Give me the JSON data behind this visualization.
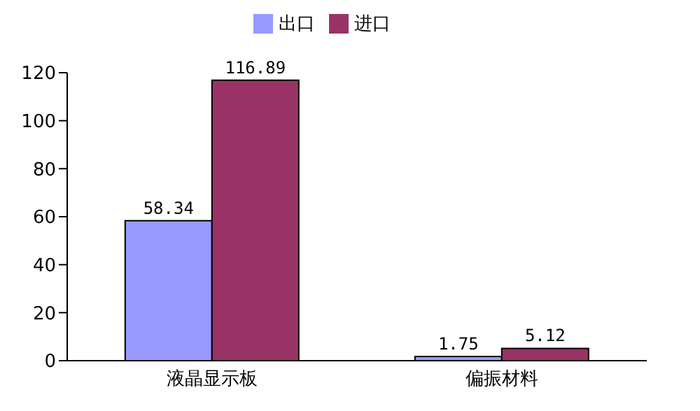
{
  "chart_data": {
    "type": "bar",
    "categories": [
      "液晶显示板",
      "偏振材料"
    ],
    "series": [
      {
        "name": "出口",
        "color": "#9999ff",
        "values": [
          58.34,
          1.75
        ]
      },
      {
        "name": "进口",
        "color": "#993366",
        "values": [
          116.89,
          5.12
        ]
      }
    ],
    "ylim": [
      0,
      120
    ],
    "yticks": [
      0,
      20,
      40,
      60,
      80,
      100,
      120
    ],
    "data_labels": true,
    "legend": "top"
  }
}
